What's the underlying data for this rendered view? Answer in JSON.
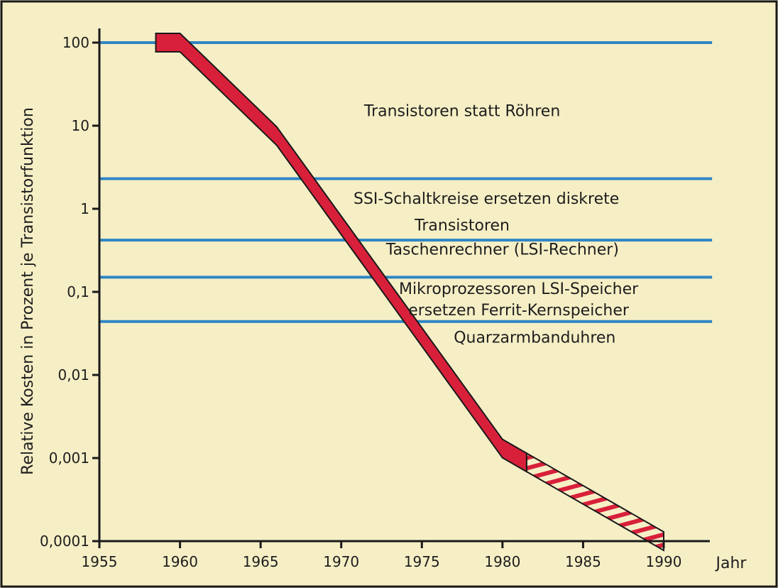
{
  "chart_data": {
    "type": "line",
    "title": "",
    "xlabel": "Jahr",
    "ylabel": "Relative Kosten in Prozent je Transistorfunktion",
    "x_ticks": [
      "1955",
      "1960",
      "1965",
      "1970",
      "1975",
      "1980",
      "1985",
      "1990"
    ],
    "y_ticks": [
      "100",
      "10",
      "1",
      "0,1",
      "0,01",
      "0,001",
      "0,0001"
    ],
    "xlim": [
      1955,
      1993
    ],
    "ylim": [
      0.0001,
      100
    ],
    "y_scale": "log",
    "grid": false,
    "series": [
      {
        "x": [
          1958.5,
          1960.0,
          1966.0,
          1980.0,
          1990.0
        ],
        "y": [
          100,
          100,
          7.5,
          0.0013,
          0.0001
        ],
        "style": "band",
        "color": "#d8203a",
        "projected_from_x": 1981.5
      }
    ],
    "annotations": [
      {
        "y": 100,
        "line_from_x": 1955.0,
        "line_to_x": 1993.0,
        "label": "Transistoren statt Röhren",
        "label_x": 1977.5,
        "label_y": 13
      },
      {
        "y": 2.3,
        "line_from_x": 1955.0,
        "line_to_x": 1993.0,
        "label": "SSI-Schaltkreise ersetzen diskrete",
        "label_x": 1979.0,
        "label_y": 1.15
      },
      {
        "y": null,
        "label": "Transistoren",
        "label_x": 1977.5,
        "label_y": 0.55
      },
      {
        "y": 0.42,
        "line_from_x": 1955.0,
        "line_to_x": 1993.0,
        "label": "Taschenrechner (LSI-Rechner)",
        "label_x": 1980.0,
        "label_y": 0.28
      },
      {
        "y": 0.15,
        "line_from_x": 1955.0,
        "line_to_x": 1993.0,
        "label": "Mikroprozessoren LSI-Speicher",
        "label_x": 1981.0,
        "label_y": 0.094
      },
      {
        "y": null,
        "label": "ersetzen Ferrit-Kernspeicher",
        "label_x": 1981.0,
        "label_y": 0.052
      },
      {
        "y": 0.044,
        "line_from_x": 1955.0,
        "line_to_x": 1993.0,
        "label": "Quarzarmbanduhren",
        "label_x": 1982.0,
        "label_y": 0.0245
      }
    ],
    "colors": {
      "background": "#f6efc6",
      "band": "#d8203a",
      "band_outline": "#1a1a1a",
      "reference_lines": "#2f86c4",
      "axis": "#1a1a1a"
    }
  }
}
